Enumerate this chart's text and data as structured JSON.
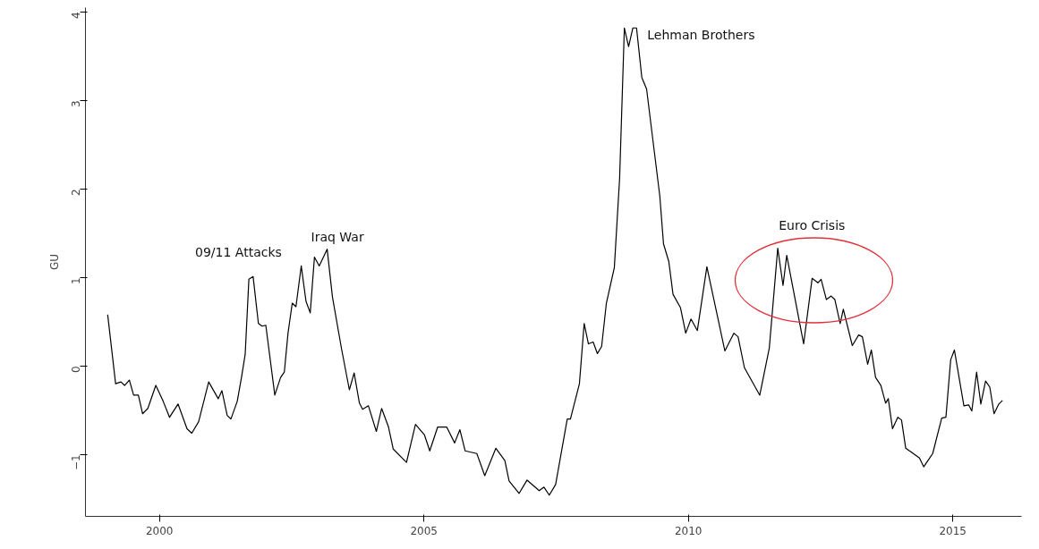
{
  "chart_data": {
    "type": "line",
    "ylabel": "GU",
    "x": [
      1999.02,
      1999.17,
      1999.27,
      1999.34,
      1999.43,
      1999.51,
      1999.6,
      1999.68,
      1999.78,
      1999.93,
      2000.07,
      2000.19,
      2000.35,
      2000.52,
      2000.61,
      2000.74,
      2000.93,
      2001.11,
      2001.18,
      2001.28,
      2001.35,
      2001.47,
      2001.55,
      2001.62,
      2001.69,
      2001.77,
      2001.87,
      2001.94,
      2002.01,
      2002.18,
      2002.29,
      2002.36,
      2002.43,
      2002.51,
      2002.58,
      2002.68,
      2002.77,
      2002.85,
      2002.93,
      2003.02,
      2003.17,
      2003.27,
      2003.44,
      2003.59,
      2003.68,
      2003.78,
      2003.84,
      2003.95,
      2004.1,
      2004.2,
      2004.33,
      2004.42,
      2004.67,
      2004.84,
      2005.01,
      2005.11,
      2005.26,
      2005.43,
      2005.58,
      2005.68,
      2005.78,
      2006.0,
      2006.15,
      2006.36,
      2006.53,
      2006.61,
      2006.8,
      2006.95,
      2007.18,
      2007.27,
      2007.37,
      2007.49,
      2007.71,
      2007.77,
      2007.94,
      2008.03,
      2008.11,
      2008.2,
      2008.28,
      2008.36,
      2008.45,
      2008.6,
      2008.7,
      2008.79,
      2008.87,
      2008.95,
      2009.02,
      2009.12,
      2009.21,
      2009.46,
      2009.53,
      2009.63,
      2009.71,
      2009.85,
      2009.95,
      2010.05,
      2010.17,
      2010.35,
      2010.69,
      2010.86,
      2010.94,
      2011.06,
      2011.35,
      2011.53,
      2011.69,
      2011.79,
      2011.86,
      2012.18,
      2012.34,
      2012.45,
      2012.51,
      2012.61,
      2012.7,
      2012.77,
      2012.87,
      2012.93,
      2013.1,
      2013.22,
      2013.29,
      2013.39,
      2013.46,
      2013.54,
      2013.64,
      2013.73,
      2013.78,
      2013.86,
      2013.96,
      2014.03,
      2014.11,
      2014.37,
      2014.45,
      2014.62,
      2014.79,
      2014.87,
      2014.96,
      2015.03,
      2015.21,
      2015.3,
      2015.36,
      2015.45,
      2015.53,
      2015.62,
      2015.7,
      2015.78,
      2015.87,
      2015.94
    ],
    "series": [
      {
        "color": "#000000",
        "values": [
          0.58,
          -0.2,
          -0.18,
          -0.22,
          -0.16,
          -0.33,
          -0.33,
          -0.54,
          -0.48,
          -0.22,
          -0.4,
          -0.58,
          -0.43,
          -0.71,
          -0.76,
          -0.63,
          -0.18,
          -0.37,
          -0.28,
          -0.56,
          -0.6,
          -0.4,
          -0.13,
          0.13,
          0.98,
          1.01,
          0.48,
          0.45,
          0.46,
          -0.33,
          -0.13,
          -0.07,
          0.37,
          0.71,
          0.67,
          1.13,
          0.73,
          0.6,
          1.23,
          1.13,
          1.32,
          0.78,
          0.2,
          -0.27,
          -0.08,
          -0.42,
          -0.49,
          -0.45,
          -0.74,
          -0.48,
          -0.69,
          -0.94,
          -1.09,
          -0.66,
          -0.78,
          -0.96,
          -0.69,
          -0.69,
          -0.87,
          -0.72,
          -0.96,
          -0.99,
          -1.24,
          -0.93,
          -1.07,
          -1.3,
          -1.44,
          -1.29,
          -1.41,
          -1.37,
          -1.46,
          -1.34,
          -0.6,
          -0.6,
          -0.2,
          0.48,
          0.25,
          0.27,
          0.14,
          0.22,
          0.71,
          1.11,
          2.12,
          3.82,
          3.61,
          3.82,
          3.82,
          3.26,
          3.13,
          1.92,
          1.38,
          1.18,
          0.81,
          0.66,
          0.37,
          0.53,
          0.4,
          1.12,
          0.17,
          0.37,
          0.33,
          -0.02,
          -0.33,
          0.2,
          1.33,
          0.91,
          1.25,
          0.25,
          0.99,
          0.94,
          0.98,
          0.75,
          0.79,
          0.75,
          0.48,
          0.64,
          0.23,
          0.35,
          0.33,
          0.02,
          0.18,
          -0.13,
          -0.22,
          -0.42,
          -0.37,
          -0.71,
          -0.58,
          -0.61,
          -0.93,
          -1.04,
          -1.14,
          -0.99,
          -0.59,
          -0.58,
          0.07,
          0.18,
          -0.45,
          -0.44,
          -0.51,
          -0.07,
          -0.43,
          -0.17,
          -0.24,
          -0.54,
          -0.43,
          -0.39
        ]
      }
    ],
    "xlim": [
      1998.6,
      2016.3
    ],
    "ylim": [
      -1.7,
      4.05
    ],
    "xticks": [
      2000,
      2005,
      2010,
      2015
    ],
    "yticks": [
      -1,
      0,
      1,
      2,
      3,
      4
    ],
    "grid": false,
    "marker": "none",
    "line_style": "solid",
    "annotations": [
      {
        "text": "09/11 Attacks",
        "x": 2001.77,
        "y": 1.01
      },
      {
        "text": "Iraq War",
        "x": 2003.17,
        "y": 1.32
      },
      {
        "text": "Lehman Brothers",
        "x": 2009.02,
        "y": 3.82
      },
      "Euro  Crisis"
    ]
  }
}
